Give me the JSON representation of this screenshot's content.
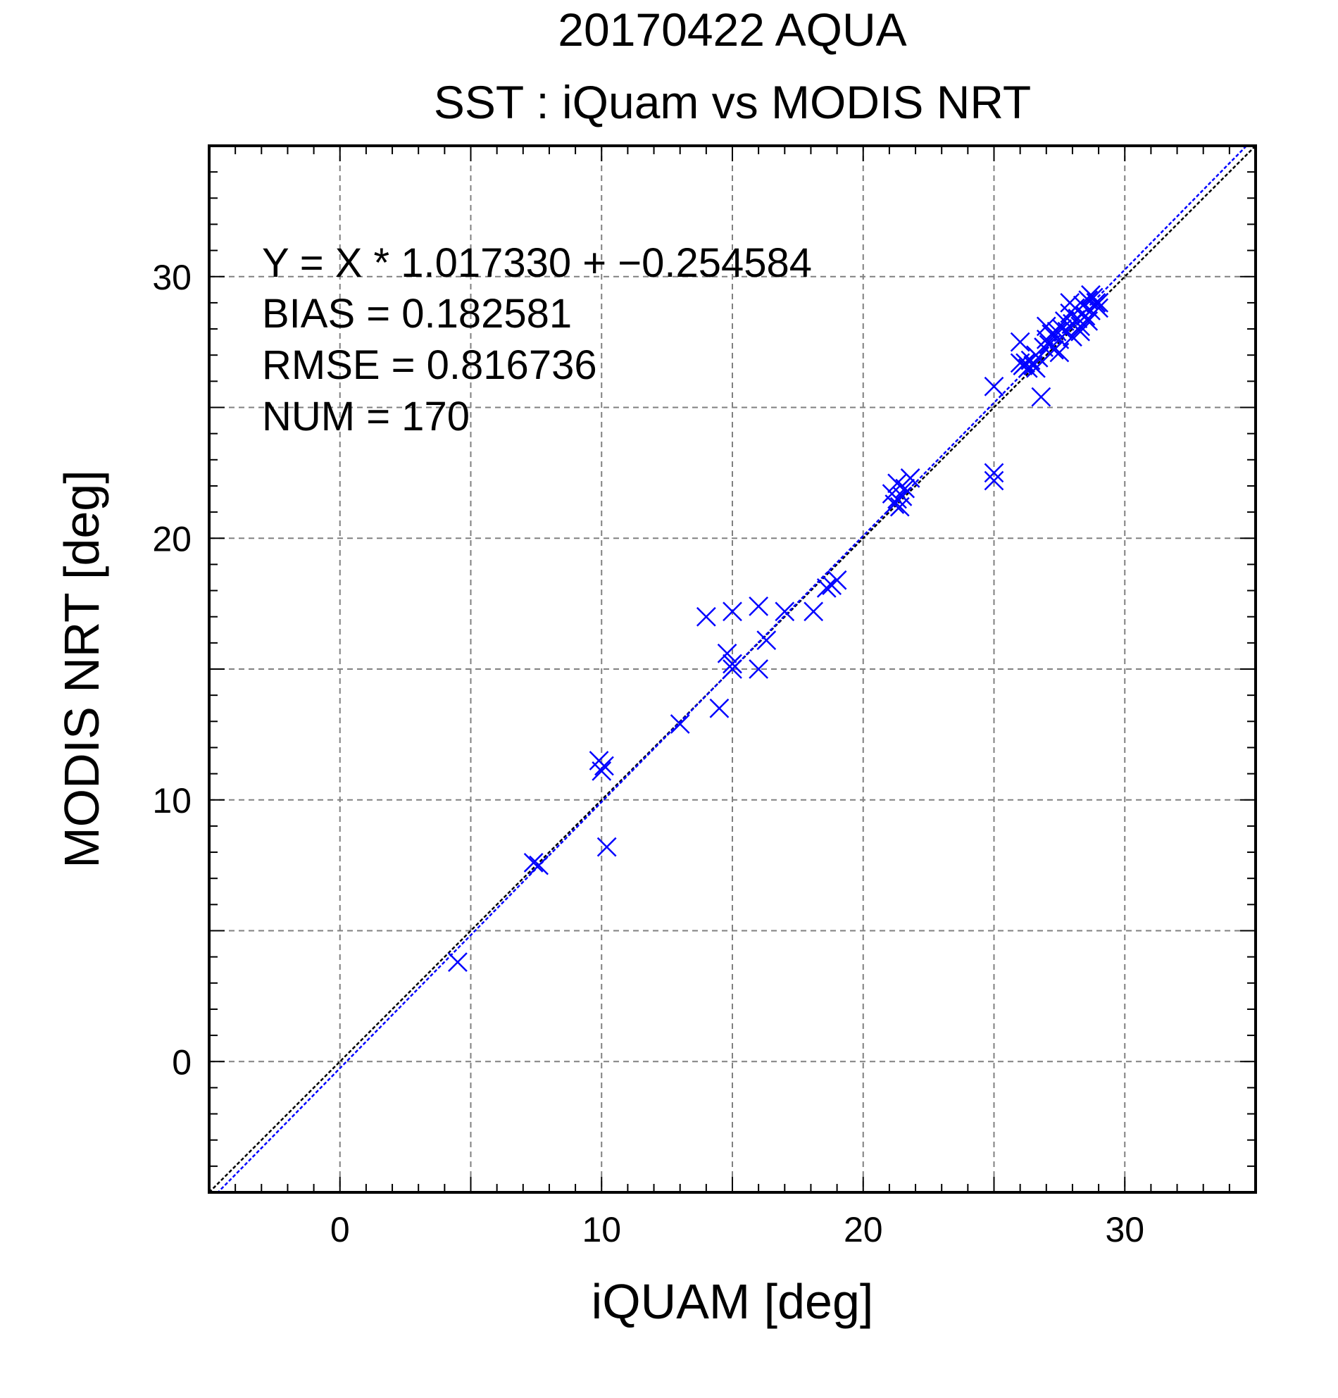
{
  "chart_data": {
    "type": "scatter",
    "title": "20170422 AQUA",
    "subtitle": "SST : iQuam vs MODIS NRT",
    "xlabel": "iQUAM [deg]",
    "ylabel": "MODIS NRT [deg]",
    "xlim": [
      -5,
      35
    ],
    "ylim": [
      -5,
      35
    ],
    "x_ticks": [
      0,
      10,
      20,
      30
    ],
    "y_ticks": [
      0,
      10,
      20,
      30
    ],
    "x_tick_labels": [
      "0",
      "10",
      "20",
      "30"
    ],
    "y_tick_labels": [
      "0",
      "10",
      "20",
      "30"
    ],
    "grid": true,
    "grid_step": 5,
    "minor_tick_step": 1,
    "marker": "x",
    "colors": {
      "points": "#0000ff",
      "fit_line": "#0000ff",
      "identity_line": "#000000",
      "grid": "#808080"
    },
    "stats": {
      "equation": "Y = X * 1.017330 + −0.254584",
      "bias": "BIAS = 0.182581",
      "rmse": "RMSE = 0.816736",
      "num": "NUM = 170"
    },
    "fit": {
      "slope": 1.01733,
      "intercept": -0.254584
    },
    "identity": {
      "slope": 1,
      "intercept": 0
    },
    "points": [
      {
        "x": 4.5,
        "y": 3.8
      },
      {
        "x": 7.4,
        "y": 7.6
      },
      {
        "x": 7.6,
        "y": 7.5
      },
      {
        "x": 9.9,
        "y": 11.5
      },
      {
        "x": 10.1,
        "y": 11.3
      },
      {
        "x": 10.0,
        "y": 11.1
      },
      {
        "x": 10.2,
        "y": 8.2
      },
      {
        "x": 13.0,
        "y": 12.9
      },
      {
        "x": 14.0,
        "y": 17.0
      },
      {
        "x": 14.5,
        "y": 13.5
      },
      {
        "x": 14.8,
        "y": 15.6
      },
      {
        "x": 15.0,
        "y": 15.2
      },
      {
        "x": 15.0,
        "y": 15.0
      },
      {
        "x": 15.0,
        "y": 17.2
      },
      {
        "x": 16.0,
        "y": 17.4
      },
      {
        "x": 16.0,
        "y": 15.0
      },
      {
        "x": 16.3,
        "y": 16.1
      },
      {
        "x": 17.0,
        "y": 17.2
      },
      {
        "x": 18.1,
        "y": 17.2
      },
      {
        "x": 18.6,
        "y": 18.1
      },
      {
        "x": 18.8,
        "y": 18.2
      },
      {
        "x": 19.0,
        "y": 18.4
      },
      {
        "x": 21.1,
        "y": 21.7
      },
      {
        "x": 21.3,
        "y": 21.5
      },
      {
        "x": 21.3,
        "y": 22.1
      },
      {
        "x": 21.4,
        "y": 21.2
      },
      {
        "x": 21.5,
        "y": 21.6
      },
      {
        "x": 21.6,
        "y": 21.9
      },
      {
        "x": 21.8,
        "y": 22.3
      },
      {
        "x": 21.2,
        "y": 21.3
      },
      {
        "x": 25.0,
        "y": 25.8
      },
      {
        "x": 25.0,
        "y": 22.5
      },
      {
        "x": 25.0,
        "y": 22.2
      },
      {
        "x": 26.0,
        "y": 27.5
      },
      {
        "x": 26.0,
        "y": 26.7
      },
      {
        "x": 26.1,
        "y": 26.6
      },
      {
        "x": 26.2,
        "y": 26.7
      },
      {
        "x": 26.3,
        "y": 26.5
      },
      {
        "x": 26.4,
        "y": 26.8
      },
      {
        "x": 26.5,
        "y": 26.6
      },
      {
        "x": 26.6,
        "y": 27.0
      },
      {
        "x": 26.7,
        "y": 26.9
      },
      {
        "x": 26.8,
        "y": 25.4
      },
      {
        "x": 26.9,
        "y": 27.3
      },
      {
        "x": 27.0,
        "y": 27.6
      },
      {
        "x": 27.0,
        "y": 28.1
      },
      {
        "x": 27.1,
        "y": 27.4
      },
      {
        "x": 27.2,
        "y": 27.8
      },
      {
        "x": 27.3,
        "y": 27.2
      },
      {
        "x": 27.4,
        "y": 27.9
      },
      {
        "x": 27.5,
        "y": 27.6
      },
      {
        "x": 27.6,
        "y": 28.0
      },
      {
        "x": 27.7,
        "y": 28.3
      },
      {
        "x": 27.8,
        "y": 27.9
      },
      {
        "x": 27.9,
        "y": 28.6
      },
      {
        "x": 28.0,
        "y": 28.2
      },
      {
        "x": 28.0,
        "y": 27.7
      },
      {
        "x": 28.1,
        "y": 28.8
      },
      {
        "x": 28.2,
        "y": 28.4
      },
      {
        "x": 28.3,
        "y": 28.1
      },
      {
        "x": 28.4,
        "y": 28.9
      },
      {
        "x": 28.5,
        "y": 28.5
      },
      {
        "x": 28.6,
        "y": 29.1
      },
      {
        "x": 28.7,
        "y": 28.7
      },
      {
        "x": 28.8,
        "y": 29.2
      },
      {
        "x": 28.9,
        "y": 29.0
      },
      {
        "x": 29.0,
        "y": 29.0
      },
      {
        "x": 27.9,
        "y": 29.0
      },
      {
        "x": 28.3,
        "y": 27.9
      },
      {
        "x": 28.6,
        "y": 28.3
      },
      {
        "x": 29.0,
        "y": 28.8
      },
      {
        "x": 27.5,
        "y": 27.1
      },
      {
        "x": 26.6,
        "y": 26.5
      },
      {
        "x": 28.7,
        "y": 29.3
      }
    ]
  }
}
